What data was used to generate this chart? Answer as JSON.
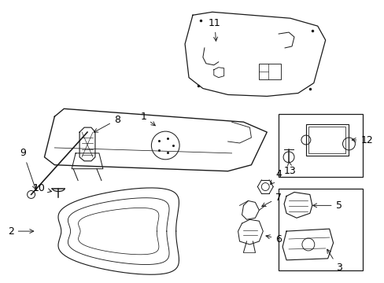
{
  "bg_color": "#ffffff",
  "line_color": "#1a1a1a",
  "label_color": "#000000",
  "font_size": 9,
  "fig_w": 4.89,
  "fig_h": 3.6,
  "dpi": 100
}
